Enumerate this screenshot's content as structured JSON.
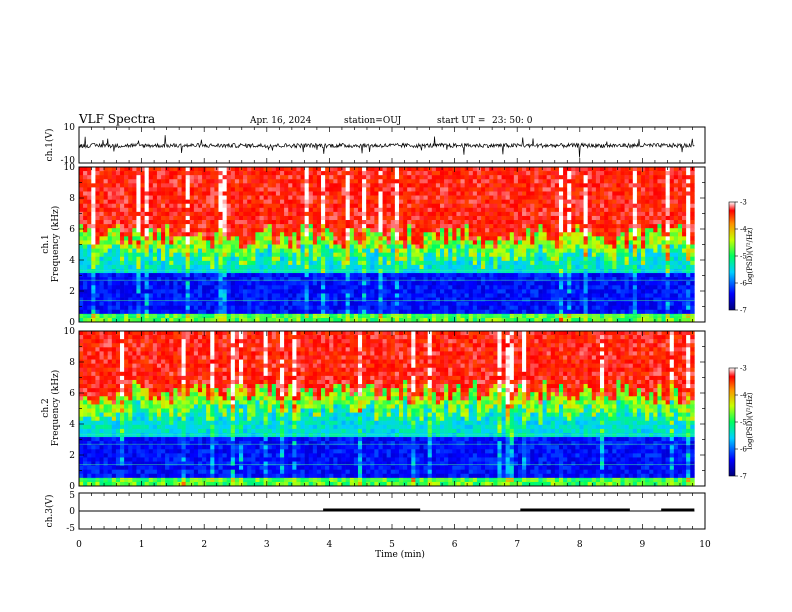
{
  "header": {
    "title": "VLF Spectra",
    "date": "Apr. 16, 2024",
    "station": "station=OUJ",
    "start_label": "start  UT  =",
    "start_time": "23: 50: 0"
  },
  "chart_data": [
    {
      "type": "line",
      "panel": "ch1-waveform",
      "ylabel": "ch.1(V)",
      "ylim": [
        -10,
        10
      ],
      "yticks": [
        "10",
        "-10"
      ],
      "x_range": [
        0,
        9.83
      ],
      "baseline": -0.3,
      "amplitude": 1.2,
      "color": "#000000"
    },
    {
      "type": "heatmap",
      "panel": "ch1-spectrogram",
      "ylabel_channel": "ch.1",
      "ylabel": "Frequency (kHz)",
      "ylim": [
        0,
        10
      ],
      "yticks": [
        "0",
        "2",
        "4",
        "6",
        "8",
        "10"
      ],
      "x_range": [
        0,
        9.83
      ],
      "transition_freq_khz": 5.5,
      "colorbar": {
        "label": "log(PSD)(V²/Hz)",
        "range": [
          -7,
          -3
        ],
        "ticks": [
          "-3",
          "-4",
          "-5",
          "-6",
          "-7"
        ]
      }
    },
    {
      "type": "heatmap",
      "panel": "ch2-spectrogram",
      "ylabel_channel": "ch.2",
      "ylabel": "Frequency (kHz)",
      "ylim": [
        0,
        10
      ],
      "yticks": [
        "0",
        "2",
        "4",
        "6",
        "8",
        "10"
      ],
      "x_range": [
        0,
        9.83
      ],
      "transition_freq_khz": 6.0,
      "colorbar": {
        "label": "log(PSD)(V²/Hz)",
        "range": [
          -7,
          -3
        ],
        "ticks": [
          "-3",
          "-4",
          "-5",
          "-6",
          "-7"
        ]
      }
    },
    {
      "type": "line",
      "panel": "ch3-signal",
      "ylabel": "ch.3(V)",
      "ylim": [
        -5,
        5
      ],
      "yticks": [
        "5",
        "0",
        "-5"
      ],
      "x_range": [
        0,
        9.83
      ],
      "baseline": 0,
      "thick_segments_min": [
        [
          3.9,
          5.45
        ],
        [
          7.05,
          8.8
        ],
        [
          9.3,
          9.83
        ]
      ],
      "color": "#000000"
    }
  ],
  "xaxis": {
    "xlabel": "Time  (min)",
    "xlim": [
      0,
      10
    ],
    "ticks": [
      "0",
      "1",
      "2",
      "3",
      "4",
      "5",
      "6",
      "7",
      "8",
      "9",
      "10"
    ]
  }
}
